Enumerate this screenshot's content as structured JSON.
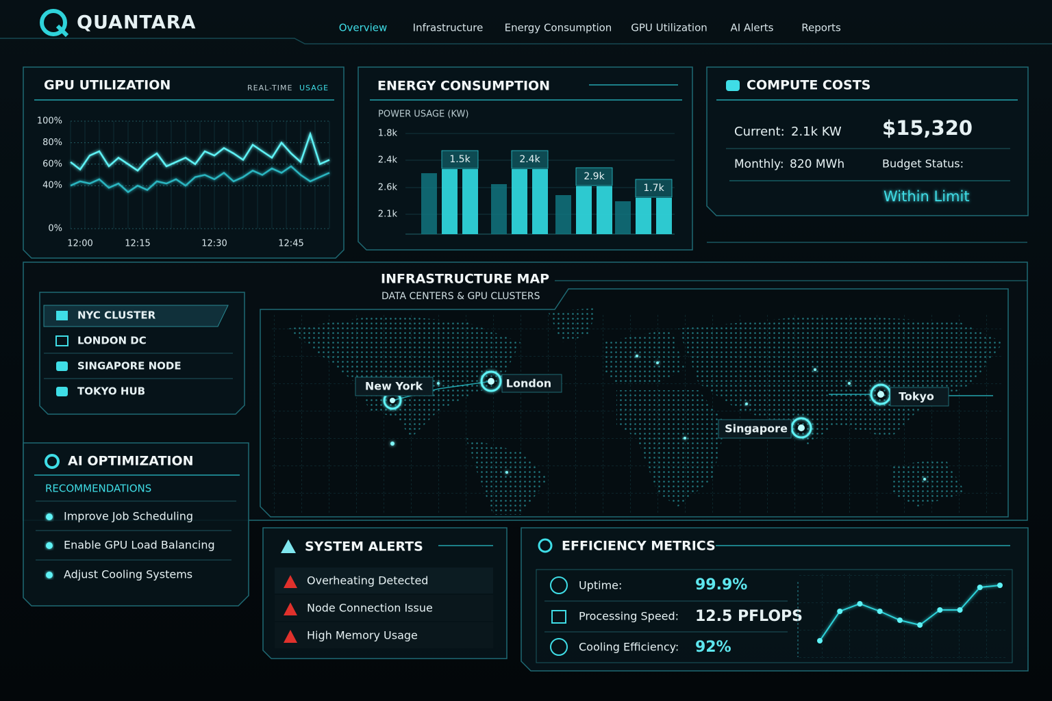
{
  "header": {
    "brand": "QUANTARA",
    "nav": [
      "Overview",
      "Infrastructure",
      "Energy Consumption",
      "GPU Utilization",
      "AI Alerts",
      "Reports"
    ]
  },
  "gpu_utilization": {
    "type": "line",
    "title": "GPU UTILIZATION",
    "badge": [
      "REAL-TIME",
      "USAGE"
    ],
    "categories": [
      null,
      "12:00",
      null,
      null,
      null,
      null,
      null,
      "12:15",
      null,
      null,
      null,
      null,
      null,
      null,
      null,
      "12:30",
      null,
      null,
      null,
      null,
      null,
      null,
      null,
      "12:45",
      null,
      null,
      null,
      null
    ],
    "series": [
      {
        "color": "#5ef2f5",
        "values": [
          62,
          55,
          68,
          72,
          58,
          66,
          60,
          54,
          64,
          70,
          58,
          62,
          66,
          60,
          72,
          68,
          75,
          70,
          64,
          78,
          72,
          66,
          80,
          70,
          62,
          88,
          60,
          64
        ]
      },
      {
        "color": "#2bb5c0",
        "values": [
          40,
          44,
          42,
          46,
          38,
          42,
          34,
          40,
          36,
          44,
          42,
          46,
          40,
          48,
          50,
          46,
          52,
          44,
          48,
          54,
          50,
          56,
          52,
          58,
          50,
          44,
          48,
          52
        ]
      }
    ],
    "ylim": [
      0,
      100
    ],
    "yticks": [
      {
        "value": 0,
        "label": "0%"
      },
      {
        "value": 40,
        "label": "40%"
      },
      {
        "value": 60,
        "label": "60%"
      },
      {
        "value": 80,
        "label": "80%"
      },
      {
        "value": 100,
        "label": "100%"
      }
    ],
    "grid": true
  },
  "energy_consumption": {
    "type": "bar",
    "title": "ENERGY CONSUMPTION",
    "subtitle": "POWER USAGE (KW)",
    "y_labels": [
      "1.8k",
      "2.4k",
      "2.6k",
      "2.1k"
    ],
    "ylim": [
      0,
      1800
    ],
    "series": [
      {
        "color": "#127a84",
        "values": [
          1090,
          894,
          698,
          588
        ]
      },
      {
        "color": "#2fd3da",
        "values": [
          1163,
          1163,
          857,
          649
        ]
      },
      {
        "color": "#2fd3da",
        "values": [
          1163,
          1163,
          857,
          649
        ]
      }
    ],
    "bar_labels": [
      "1.5k",
      "2.4k",
      "2.9k",
      "1.7k"
    ]
  },
  "compute_costs": {
    "title": "COMPUTE COSTS",
    "current_label": "Current:",
    "current_value": "2.1k KW",
    "total": "$15,320",
    "monthly_label": "Monthly:",
    "monthly_value": "820 MWh",
    "budget_label": "Budget Status:",
    "budget_value": "Within Limit"
  },
  "clusters": [
    "NYC CLUSTER",
    "LONDON DC",
    "SINGAPORE NODE",
    "TOKYO HUB"
  ],
  "ai_optimization": {
    "title": "AI OPTIMIZATION",
    "subtitle": "RECOMMENDATIONS",
    "items": [
      "Improve Job Scheduling",
      "Enable GPU Load Balancing",
      "Adjust Cooling Systems"
    ]
  },
  "infrastructure_map": {
    "title": "INFRASTRUCTURE MAP",
    "subtitle": "DATA CENTERS & GPU CLUSTERS",
    "locations": [
      "New York",
      "London",
      "Tokyo",
      "Singapore"
    ]
  },
  "system_alerts": {
    "title": "SYSTEM ALERTS",
    "items": [
      "Overheating Detected",
      "Node Connection Issue",
      "High Memory Usage"
    ]
  },
  "efficiency_metrics": {
    "title": "EFFICIENCY METRICS",
    "metrics": [
      {
        "label": "Uptime:",
        "value": "99.9%"
      },
      {
        "label": "Processing Speed:",
        "value": "12.5 PFLOPS"
      },
      {
        "label": "Cooling Efficiency:",
        "value": "92%"
      }
    ],
    "sparkline": {
      "type": "line",
      "color": "#2fd3da",
      "values": [
        24,
        67,
        78,
        67,
        54,
        47,
        69,
        69,
        102,
        105
      ]
    }
  }
}
